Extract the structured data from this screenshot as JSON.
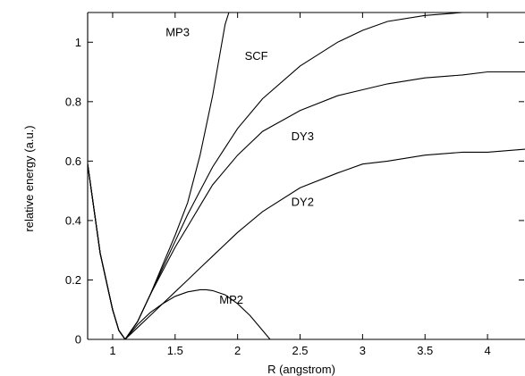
{
  "chart_data": {
    "type": "line",
    "title": "",
    "xlabel": "R (angstrom)",
    "ylabel": "relative energy (a.u.)",
    "xlim": [
      0.8,
      4.3
    ],
    "ylim": [
      0,
      1.1
    ],
    "xticks": [
      1,
      1.5,
      2,
      2.5,
      3,
      3.5,
      4
    ],
    "xtick_labels": [
      "1",
      "1.5",
      "2",
      "2.5",
      "3",
      "3.5",
      "4"
    ],
    "yticks": [
      0,
      0.2,
      0.4,
      0.6,
      0.8,
      1
    ],
    "ytick_labels": [
      "0",
      "0.2",
      "0.4",
      "0.6",
      "0.8",
      "1"
    ],
    "grid": false,
    "legend": "none",
    "series": [
      {
        "name": "MP3",
        "x": [
          0.8,
          0.9,
          1.0,
          1.05,
          1.1,
          1.2,
          1.3,
          1.4,
          1.5,
          1.6,
          1.7,
          1.8,
          1.85,
          1.9,
          1.93
        ],
        "y": [
          0.59,
          0.29,
          0.1,
          0.03,
          0.0,
          0.06,
          0.15,
          0.25,
          0.35,
          0.46,
          0.62,
          0.82,
          0.94,
          1.06,
          1.1
        ]
      },
      {
        "name": "SCF",
        "x": [
          0.8,
          0.9,
          1.0,
          1.05,
          1.1,
          1.2,
          1.3,
          1.4,
          1.5,
          1.6,
          1.7,
          1.8,
          2.0,
          2.2,
          2.5,
          2.8,
          3.0,
          3.2,
          3.5,
          3.8,
          3.95
        ],
        "y": [
          0.59,
          0.29,
          0.1,
          0.03,
          0.0,
          0.06,
          0.15,
          0.24,
          0.33,
          0.42,
          0.5,
          0.58,
          0.71,
          0.81,
          0.92,
          1.0,
          1.04,
          1.07,
          1.09,
          1.1,
          1.1
        ]
      },
      {
        "name": "DY3",
        "x": [
          0.8,
          0.9,
          1.0,
          1.05,
          1.1,
          1.2,
          1.3,
          1.4,
          1.5,
          1.6,
          1.7,
          1.8,
          2.0,
          2.2,
          2.5,
          2.8,
          3.0,
          3.2,
          3.5,
          3.8,
          4.0,
          4.3
        ],
        "y": [
          0.59,
          0.29,
          0.1,
          0.03,
          0.0,
          0.06,
          0.15,
          0.23,
          0.31,
          0.38,
          0.45,
          0.52,
          0.62,
          0.7,
          0.77,
          0.82,
          0.84,
          0.86,
          0.88,
          0.89,
          0.9,
          0.9
        ]
      },
      {
        "name": "DY2",
        "x": [
          0.8,
          0.9,
          1.0,
          1.05,
          1.1,
          1.2,
          1.3,
          1.4,
          1.5,
          1.6,
          1.7,
          1.8,
          2.0,
          2.2,
          2.5,
          2.8,
          3.0,
          3.2,
          3.5,
          3.8,
          4.0,
          4.3
        ],
        "y": [
          0.59,
          0.29,
          0.1,
          0.03,
          0.0,
          0.04,
          0.08,
          0.12,
          0.16,
          0.2,
          0.24,
          0.28,
          0.36,
          0.43,
          0.51,
          0.56,
          0.59,
          0.6,
          0.62,
          0.63,
          0.63,
          0.64
        ]
      },
      {
        "name": "MP2",
        "x": [
          0.8,
          0.9,
          1.0,
          1.05,
          1.1,
          1.2,
          1.3,
          1.4,
          1.5,
          1.6,
          1.7,
          1.75,
          1.8,
          1.9,
          2.0,
          2.1,
          2.2,
          2.26
        ],
        "y": [
          0.59,
          0.29,
          0.1,
          0.03,
          0.0,
          0.05,
          0.09,
          0.12,
          0.145,
          0.16,
          0.167,
          0.167,
          0.164,
          0.15,
          0.12,
          0.08,
          0.03,
          0.0
        ]
      }
    ],
    "annotations": [
      {
        "text": "MP3",
        "x": 1.52,
        "y": 1.02
      },
      {
        "text": "SCF",
        "x": 2.15,
        "y": 0.94
      },
      {
        "text": "DY3",
        "x": 2.52,
        "y": 0.67
      },
      {
        "text": "DY2",
        "x": 2.52,
        "y": 0.45
      },
      {
        "text": "MP2",
        "x": 1.95,
        "y": 0.12
      }
    ]
  }
}
